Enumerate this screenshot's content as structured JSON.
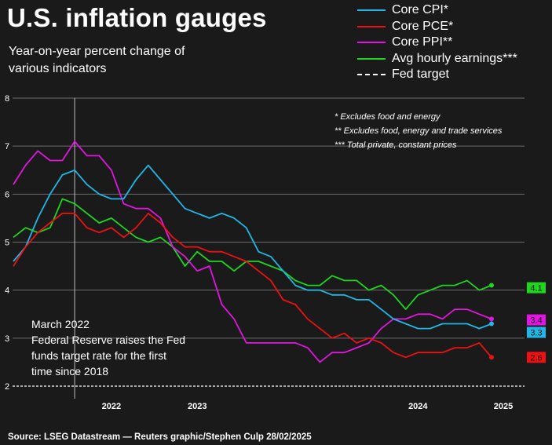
{
  "title": "U.S. inflation gauges",
  "subtitle": "Year-on-year percent change of various indicators",
  "source": "Source: LSEG Datastream — Reuters graphic/Stephen Culp 28/02/2025",
  "footnotes": [
    "* Excludes food and energy",
    "** Excludes food, energy and trade services",
    "*** Total private, constant prices"
  ],
  "annotation": {
    "heading": "March 2022",
    "body": "Federal Reserve raises the Fed funds target rate for the first time since 2018"
  },
  "legend": [
    {
      "label": "Core CPI*",
      "color": "#1fb7e6"
    },
    {
      "label": "Core PCE*",
      "color": "#ee1111"
    },
    {
      "label": "Core PPI**",
      "color": "#e215e2"
    },
    {
      "label": "Avg hourly earnings***",
      "color": "#1ed61e"
    },
    {
      "label": "Fed target",
      "color": "#ffffff",
      "style": "dashed"
    }
  ],
  "chart_data": {
    "type": "line",
    "ylim": [
      2,
      8
    ],
    "yticks": [
      "2",
      "3",
      "4",
      "5",
      "6",
      "7",
      "8"
    ],
    "xticks": [
      "2022",
      "2023",
      "2024",
      "2025"
    ],
    "x_range": [
      "2021-10",
      "2025-01"
    ],
    "event_marker": "2022-03",
    "fed_target": 2,
    "series": [
      {
        "name": "Core CPI*",
        "color": "#1fb7e6",
        "end_label": "3.3",
        "x": [
          "2021-10",
          "2021-11",
          "2021-12",
          "2022-01",
          "2022-02",
          "2022-03",
          "2022-04",
          "2022-05",
          "2022-06",
          "2022-07",
          "2022-08",
          "2022-09",
          "2022-10",
          "2022-11",
          "2022-12",
          "2023-01",
          "2023-02",
          "2023-03",
          "2023-04",
          "2023-05",
          "2023-06",
          "2023-07",
          "2023-08",
          "2023-09",
          "2023-10",
          "2023-11",
          "2023-12",
          "2024-01",
          "2024-02",
          "2024-03",
          "2024-04",
          "2024-05",
          "2024-06",
          "2024-07",
          "2024-08",
          "2024-09",
          "2024-10",
          "2024-11",
          "2024-12",
          "2025-01"
        ],
        "values": [
          4.6,
          4.9,
          5.5,
          6.0,
          6.4,
          6.5,
          6.2,
          6.0,
          5.9,
          5.9,
          6.3,
          6.6,
          6.3,
          6.0,
          5.7,
          5.6,
          5.5,
          5.6,
          5.5,
          5.3,
          4.8,
          4.7,
          4.4,
          4.1,
          4.0,
          4.0,
          3.9,
          3.9,
          3.8,
          3.8,
          3.6,
          3.4,
          3.3,
          3.2,
          3.2,
          3.3,
          3.3,
          3.3,
          3.2,
          3.3
        ]
      },
      {
        "name": "Core PCE*",
        "color": "#ee1111",
        "end_label": "2.6",
        "x": [
          "2021-10",
          "2021-11",
          "2021-12",
          "2022-01",
          "2022-02",
          "2022-03",
          "2022-04",
          "2022-05",
          "2022-06",
          "2022-07",
          "2022-08",
          "2022-09",
          "2022-10",
          "2022-11",
          "2022-12",
          "2023-01",
          "2023-02",
          "2023-03",
          "2023-04",
          "2023-05",
          "2023-06",
          "2023-07",
          "2023-08",
          "2023-09",
          "2023-10",
          "2023-11",
          "2023-12",
          "2024-01",
          "2024-02",
          "2024-03",
          "2024-04",
          "2024-05",
          "2024-06",
          "2024-07",
          "2024-08",
          "2024-09",
          "2024-10",
          "2024-11",
          "2024-12",
          "2025-01"
        ],
        "values": [
          4.5,
          4.9,
          5.2,
          5.4,
          5.6,
          5.6,
          5.3,
          5.2,
          5.3,
          5.1,
          5.3,
          5.6,
          5.4,
          5.1,
          4.9,
          4.9,
          4.8,
          4.8,
          4.7,
          4.6,
          4.4,
          4.2,
          3.8,
          3.7,
          3.4,
          3.2,
          3.0,
          3.1,
          2.9,
          3.0,
          2.9,
          2.7,
          2.6,
          2.7,
          2.7,
          2.7,
          2.8,
          2.8,
          2.9,
          2.6
        ]
      },
      {
        "name": "Core PPI**",
        "color": "#e215e2",
        "end_label": "3.4",
        "x": [
          "2021-10",
          "2021-11",
          "2021-12",
          "2022-01",
          "2022-02",
          "2022-03",
          "2022-04",
          "2022-05",
          "2022-06",
          "2022-07",
          "2022-08",
          "2022-09",
          "2022-10",
          "2022-11",
          "2022-12",
          "2023-01",
          "2023-02",
          "2023-03",
          "2023-04",
          "2023-05",
          "2023-06",
          "2023-07",
          "2023-08",
          "2023-09",
          "2023-10",
          "2023-11",
          "2023-12",
          "2024-01",
          "2024-02",
          "2024-03",
          "2024-04",
          "2024-05",
          "2024-06",
          "2024-07",
          "2024-08",
          "2024-09",
          "2024-10",
          "2024-11",
          "2024-12",
          "2025-01"
        ],
        "values": [
          6.2,
          6.6,
          6.9,
          6.7,
          6.7,
          7.1,
          6.8,
          6.8,
          6.5,
          5.8,
          5.7,
          5.7,
          5.5,
          4.9,
          4.7,
          4.4,
          4.5,
          3.7,
          3.4,
          2.9,
          2.9,
          2.9,
          2.9,
          2.9,
          2.8,
          2.5,
          2.7,
          2.7,
          2.8,
          2.9,
          3.2,
          3.4,
          3.4,
          3.5,
          3.5,
          3.4,
          3.6,
          3.6,
          3.5,
          3.4
        ]
      },
      {
        "name": "Avg hourly earnings***",
        "color": "#1ed61e",
        "end_label": "4.1",
        "x": [
          "2021-10",
          "2021-11",
          "2021-12",
          "2022-01",
          "2022-02",
          "2022-03",
          "2022-04",
          "2022-05",
          "2022-06",
          "2022-07",
          "2022-08",
          "2022-09",
          "2022-10",
          "2022-11",
          "2022-12",
          "2023-01",
          "2023-02",
          "2023-03",
          "2023-04",
          "2023-05",
          "2023-06",
          "2023-07",
          "2023-08",
          "2023-09",
          "2023-10",
          "2023-11",
          "2023-12",
          "2024-01",
          "2024-02",
          "2024-03",
          "2024-04",
          "2024-05",
          "2024-06",
          "2024-07",
          "2024-08",
          "2024-09",
          "2024-10",
          "2024-11",
          "2024-12",
          "2025-01"
        ],
        "values": [
          5.1,
          5.3,
          5.2,
          5.3,
          5.9,
          5.8,
          5.6,
          5.4,
          5.5,
          5.3,
          5.1,
          5.0,
          5.1,
          4.9,
          4.5,
          4.8,
          4.6,
          4.6,
          4.4,
          4.6,
          4.6,
          4.5,
          4.4,
          4.2,
          4.1,
          4.1,
          4.3,
          4.2,
          4.2,
          4.0,
          4.1,
          3.9,
          3.6,
          3.9,
          4.0,
          4.1,
          4.1,
          4.2,
          4.0,
          4.1
        ]
      }
    ]
  }
}
